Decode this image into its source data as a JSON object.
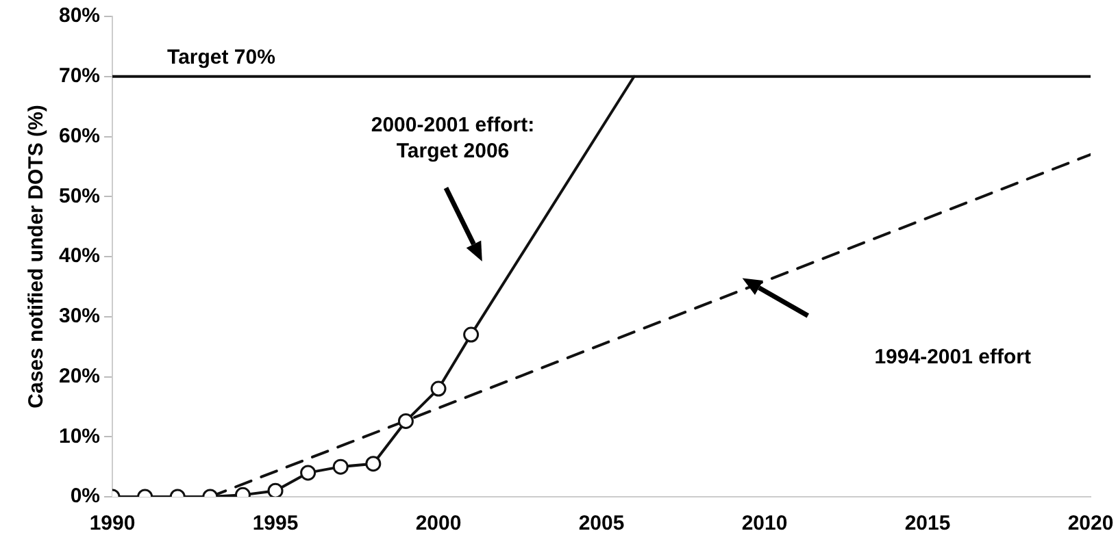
{
  "chart_data": {
    "type": "line",
    "ylabel": "Cases notified under DOTS (%)",
    "xlim": [
      1990,
      2020
    ],
    "xticks": [
      1990,
      1995,
      2000,
      2005,
      2010,
      2015,
      2020
    ],
    "ylim": [
      0,
      80
    ],
    "yticks": [
      {
        "value": 0,
        "label": "0%"
      },
      {
        "value": 10,
        "label": "10%"
      },
      {
        "value": 20,
        "label": "20%"
      },
      {
        "value": 30,
        "label": "30%"
      },
      {
        "value": 40,
        "label": "40%"
      },
      {
        "value": 50,
        "label": "50%"
      },
      {
        "value": 60,
        "label": "60%"
      },
      {
        "value": 70,
        "label": "70%"
      },
      {
        "value": 80,
        "label": "80%"
      }
    ],
    "series": [
      {
        "color": "#111111",
        "marker": "circle",
        "line_style": "solid",
        "x": [
          1990,
          1991,
          1992,
          1993,
          1994,
          1995,
          1996,
          1997,
          1998,
          1999,
          2000,
          2001
        ],
        "values": [
          0,
          0,
          0,
          0,
          0.3,
          1,
          4,
          5,
          5.5,
          12.6,
          18,
          27
        ]
      },
      {
        "color": "#111111",
        "marker": "none",
        "line_style": "solid",
        "x": [
          2001,
          2006
        ],
        "values": [
          27,
          70
        ]
      },
      {
        "color": "#111111",
        "marker": "none",
        "line_style": "dashed",
        "x": [
          1993,
          2020
        ],
        "values": [
          0,
          57
        ]
      }
    ],
    "ref_lines": [
      {
        "axis": "y",
        "value": 70,
        "label": "Target 70%",
        "color": "#111111"
      }
    ],
    "annotations": [
      "2000-2001 effort:\nTarget 2006",
      "1994-2001 effort"
    ],
    "grid": false,
    "legend": false
  }
}
